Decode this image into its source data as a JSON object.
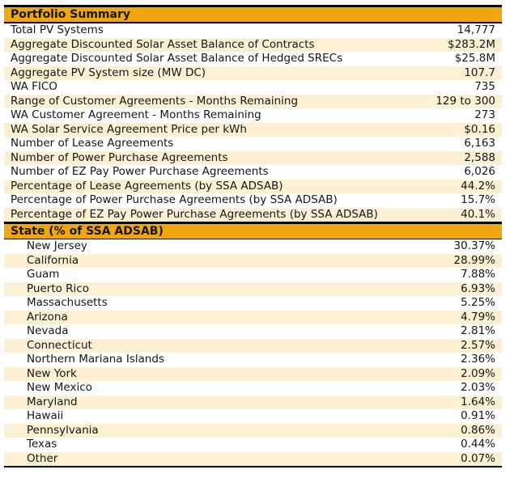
{
  "portfolio_summary": {
    "title": "Portfolio Summary",
    "rows": [
      {
        "label": "Total PV Systems",
        "value": "14,777"
      },
      {
        "label": "Aggregate Discounted Solar Asset Balance of Contracts",
        "value": "$283.2M"
      },
      {
        "label": "Aggregate Discounted Solar Asset Balance of Hedged SRECs",
        "value": "$25.8M"
      },
      {
        "label": "Aggregate PV System size (MW DC)",
        "value": "107.7"
      },
      {
        "label": "WA FICO",
        "value": "735"
      },
      {
        "label": "Range of Customer Agreements - Months Remaining",
        "value": "129 to 300"
      },
      {
        "label": "WA Customer Agreement - Months Remaining",
        "value": "273"
      },
      {
        "label": "WA Solar Service Agreement Price per kWh",
        "value": "$0.16"
      },
      {
        "label": "Number of Lease Agreements",
        "value": "6,163"
      },
      {
        "label": "Number of Power Purchase Agreements",
        "value": "2,588"
      },
      {
        "label": "Number of EZ Pay Power Purchase Agreements",
        "value": "6,026"
      },
      {
        "label": "Percentage of Lease Agreements (by SSA ADSAB)",
        "value": "44.2%"
      },
      {
        "label": "Percentage of Power Purchase Agreements (by SSA ADSAB)",
        "value": "15.7%"
      },
      {
        "label": "Percentage of EZ Pay Power Purchase Agreements (by SSA ADSAB)",
        "value": "40.1%"
      }
    ]
  },
  "state_breakdown": {
    "title": "State (% of SSA ADSAB)",
    "rows": [
      {
        "label": "New Jersey",
        "value": "30.37%"
      },
      {
        "label": "California",
        "value": "28.99%"
      },
      {
        "label": "Guam",
        "value": "7.88%"
      },
      {
        "label": "Puerto Rico",
        "value": "6.93%"
      },
      {
        "label": "Massachusetts",
        "value": "5.25%"
      },
      {
        "label": "Arizona",
        "value": "4.79%"
      },
      {
        "label": "Nevada",
        "value": "2.81%"
      },
      {
        "label": "Connecticut",
        "value": "2.57%"
      },
      {
        "label": "Northern Mariana Islands",
        "value": "2.36%"
      },
      {
        "label": "New York",
        "value": "2.09%"
      },
      {
        "label": "New Mexico",
        "value": "2.03%"
      },
      {
        "label": "Maryland",
        "value": "1.64%"
      },
      {
        "label": "Hawaii",
        "value": "0.91%"
      },
      {
        "label": "Pennsylvania",
        "value": "0.86%"
      },
      {
        "label": "Texas",
        "value": "0.44%"
      },
      {
        "label": "Other",
        "value": "0.07%"
      }
    ]
  },
  "colors": {
    "header_bg": "#F0A70E",
    "row_shade_bg": "#FCEFD2",
    "rule": "#000000"
  }
}
